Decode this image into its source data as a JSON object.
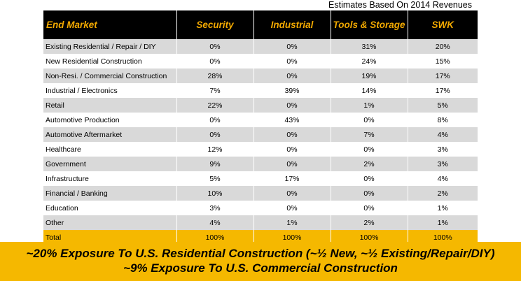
{
  "subtitle": "Estimates Based On 2014 Revenues",
  "table": {
    "headers": [
      "End Market",
      "Security",
      "Industrial",
      "Tools & Storage",
      "SWK"
    ],
    "rows": [
      [
        "Existing Residential / Repair / DIY",
        "0%",
        "0%",
        "31%",
        "20%"
      ],
      [
        "New Residential Construction",
        "0%",
        "0%",
        "24%",
        "15%"
      ],
      [
        "Non-Resi. / Commercial Construction",
        "28%",
        "0%",
        "19%",
        "17%"
      ],
      [
        "Industrial / Electronics",
        "7%",
        "39%",
        "14%",
        "17%"
      ],
      [
        "Retail",
        "22%",
        "0%",
        "1%",
        "5%"
      ],
      [
        "Automotive Production",
        "0%",
        "43%",
        "0%",
        "8%"
      ],
      [
        "Automotive Aftermarket",
        "0%",
        "0%",
        "7%",
        "4%"
      ],
      [
        "Healthcare",
        "12%",
        "0%",
        "0%",
        "3%"
      ],
      [
        "Government",
        "9%",
        "0%",
        "2%",
        "3%"
      ],
      [
        "Infrastructure",
        "5%",
        "17%",
        "0%",
        "4%"
      ],
      [
        "Financial / Banking",
        "10%",
        "0%",
        "0%",
        "2%"
      ],
      [
        "Education",
        "3%",
        "0%",
        "0%",
        "1%"
      ],
      [
        "Other",
        "4%",
        "1%",
        "2%",
        "1%"
      ]
    ],
    "total": [
      "Total",
      "100%",
      "100%",
      "100%",
      "100%"
    ]
  },
  "banner": {
    "line1": "~20% Exposure To U.S. Residential Construction (~½ New, ~½ Existing/Repair/DIY)",
    "line2": "~9% Exposure To U.S. Commercial Construction"
  },
  "colors": {
    "header_bg": "#000000",
    "header_text": "#f2a900",
    "row_shade": "#d9d9d9",
    "total_bg": "#f5b800",
    "banner_bg": "#f5b800"
  }
}
